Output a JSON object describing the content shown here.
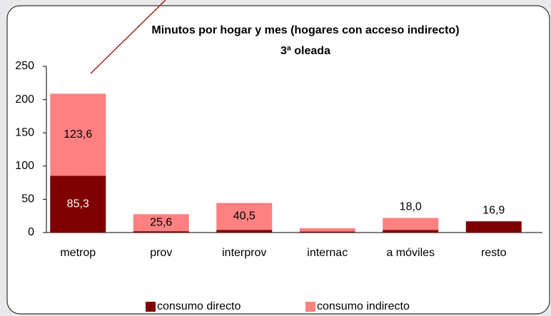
{
  "chart_data": {
    "type": "bar",
    "stacked": true,
    "title": "Minutos por hogar y mes (hogares con acceso indirecto)",
    "subtitle": "3ª oleada",
    "categories": [
      "metrop",
      "prov",
      "interprov",
      "internac",
      "a móviles",
      "resto"
    ],
    "series": [
      {
        "name": "consumo directo",
        "color": "#800000",
        "values": [
          85.3,
          2,
          4,
          1.5,
          4,
          16.9
        ],
        "value_labels": [
          "85,3",
          null,
          null,
          null,
          null,
          "16,9"
        ]
      },
      {
        "name": "consumo indirecto",
        "color": "#ff8080",
        "values": [
          123.6,
          25.6,
          40.5,
          5,
          18.0,
          0
        ],
        "value_labels": [
          "123,6",
          "25,6",
          "40,5",
          null,
          "18,0",
          null
        ]
      }
    ],
    "ylim": [
      0,
      250
    ],
    "yticks": [
      0,
      50,
      100,
      150,
      200,
      250
    ],
    "grid": false,
    "legend": "bottom"
  }
}
